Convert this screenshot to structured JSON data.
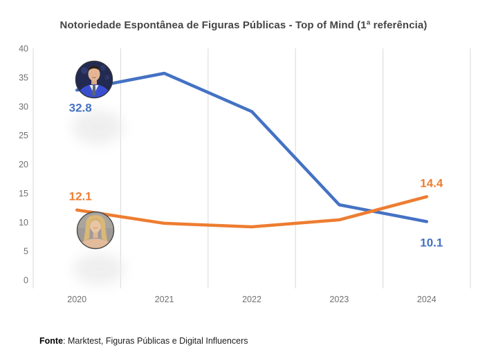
{
  "title": "Notoriedade Espontânea de Figuras Públicas - Top of Mind  (1ª referência)",
  "footer": {
    "bold": "Fonte",
    "rest": ": Marktest, Figuras Públicas e Digital Influencers"
  },
  "colors": {
    "blue_series": "#4472C4",
    "orange_series": "#ED7D31",
    "gridline": "#D8D8D8",
    "axis_text": "#6F6F6F",
    "title_text": "#454545"
  },
  "chart_data": {
    "type": "line",
    "title": "Notoriedade Espontânea de Figuras Públicas - Top of Mind (1ª referência)",
    "categories": [
      "2020",
      "2021",
      "2022",
      "2023",
      "2024"
    ],
    "ylim": [
      0,
      40
    ],
    "y_ticks": [
      0,
      5,
      10,
      15,
      20,
      25,
      30,
      35,
      40
    ],
    "grid": "vertical-only",
    "legend": "none",
    "series": [
      {
        "name": "blue-male-figure",
        "color": "#4472C4",
        "values": [
          32.8,
          35.7,
          29.1,
          13.0,
          10.1
        ],
        "start_label": {
          "text": "32.8",
          "pos": "below"
        },
        "end_label": {
          "text": "10.1",
          "pos": "below"
        },
        "avatar": "man-in-blue-suit-photo-circle"
      },
      {
        "name": "orange-female-figure",
        "color": "#ED7D31",
        "values": [
          12.1,
          9.8,
          9.2,
          10.4,
          14.4
        ],
        "start_label": {
          "text": "12.1",
          "pos": "above"
        },
        "end_label": {
          "text": "14.4",
          "pos": "above"
        },
        "avatar": "blonde-woman-photo-circle"
      }
    ]
  }
}
